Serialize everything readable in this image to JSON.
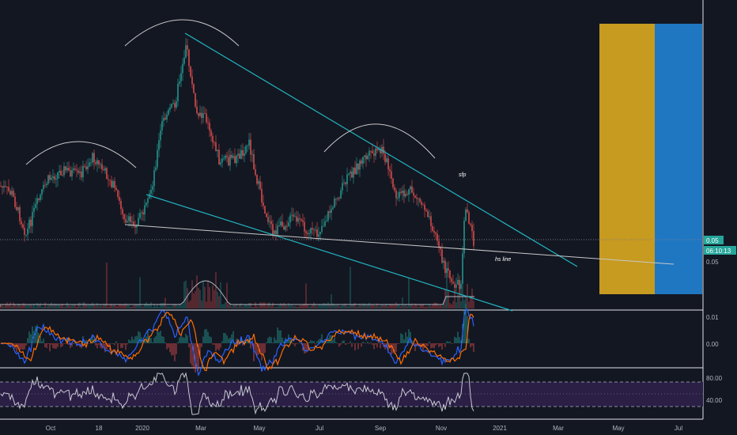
{
  "chart_data": {
    "type": "candlestick",
    "x_axis": {
      "tick_labels": [
        "Oct",
        "18",
        "2020",
        "Mar",
        "May",
        "Jul",
        "Sep",
        "Nov",
        "2021",
        "Mar",
        "May",
        "Jul"
      ]
    },
    "main_pane": {
      "price_axis_labels": [
        "0.05"
      ],
      "last_price_label": "0.05",
      "countdown_label": "06:10:13",
      "annotations": [
        "sfp",
        "hs line"
      ],
      "pattern": "head and shoulders with trendlines",
      "position_box_colors": {
        "profit": "#c79a20",
        "loss": "#1f77c2"
      }
    },
    "macd_pane": {
      "axis_labels": [
        "0.01",
        "0.00"
      ]
    },
    "rsi_pane": {
      "axis_labels": [
        "80.00",
        "40.00"
      ],
      "band_upper": 70,
      "band_lower": 30
    },
    "colors": {
      "background": "#131722",
      "up": "#26a69a",
      "down": "#ef5350",
      "trendline": "#22b5c0",
      "hs_line": "#c8c8c8",
      "macd": "#2962ff",
      "signal": "#ff6d00",
      "rsi": "#c8c8d0",
      "rsi_band": "#2b1f46"
    }
  }
}
